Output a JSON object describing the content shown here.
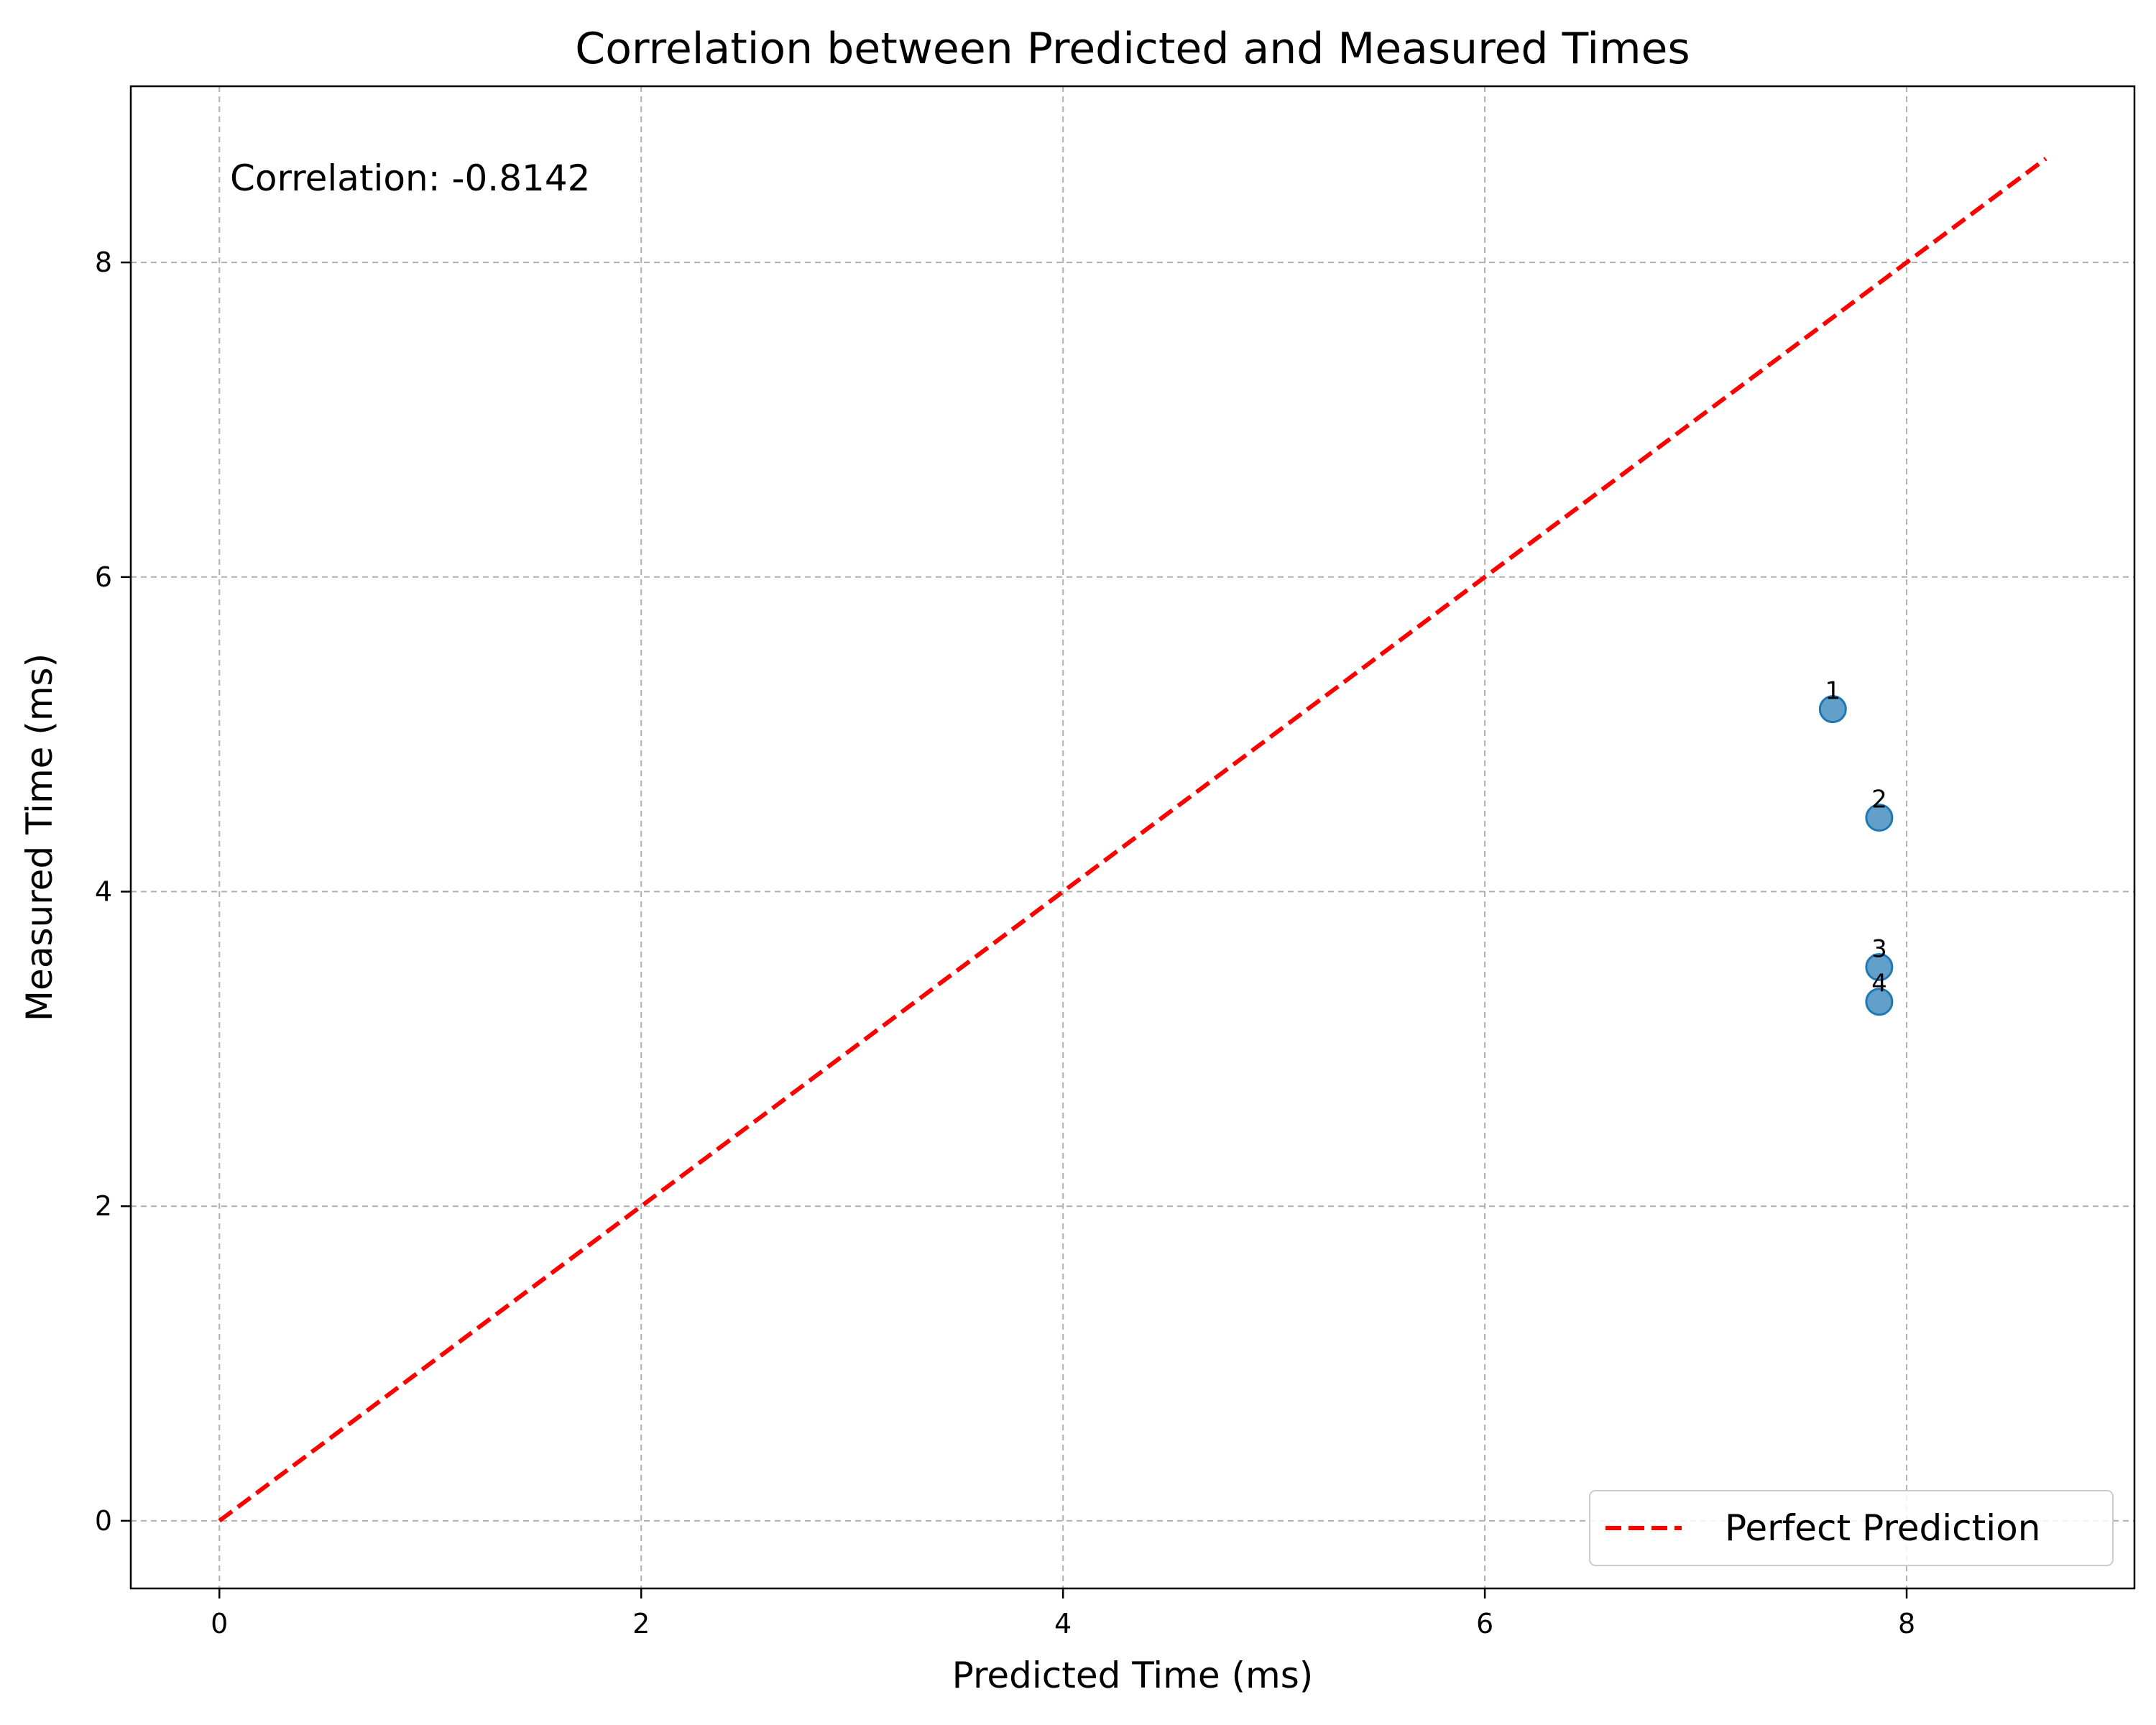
{
  "chart_data": {
    "type": "scatter",
    "title": "Correlation between Predicted and Measured Times",
    "xlabel": "Predicted Time (ms)",
    "ylabel": "Measured Time (ms)",
    "xlim": [
      -0.42,
      9.08
    ],
    "ylim": [
      -0.43,
      9.12
    ],
    "xticks": [
      0,
      2,
      4,
      6,
      8
    ],
    "yticks": [
      0,
      2,
      4,
      6,
      8
    ],
    "grid": true,
    "points": [
      {
        "label": "1",
        "x": 7.65,
        "y": 5.16
      },
      {
        "label": "2",
        "x": 7.87,
        "y": 4.47
      },
      {
        "label": "3",
        "x": 7.87,
        "y": 3.52
      },
      {
        "label": "4",
        "x": 7.87,
        "y": 3.3
      }
    ],
    "reference_line": {
      "name": "Perfect Prediction",
      "x": [
        0,
        8.66
      ],
      "y": [
        0,
        8.66
      ],
      "color": "#ff0000",
      "style": "dashed"
    },
    "annotation": "Correlation: -0.8142",
    "point_color": "#1f77b4",
    "legend": {
      "position": "lower-right",
      "entries": [
        "Perfect Prediction"
      ]
    }
  }
}
